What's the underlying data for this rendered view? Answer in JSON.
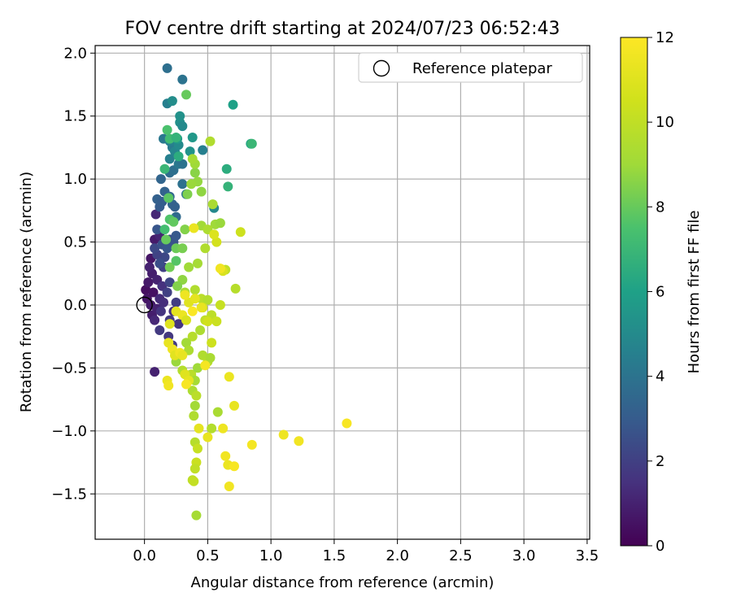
{
  "chart_data": {
    "type": "scatter",
    "title": "FOV centre drift starting at 2024/07/23 06:52:43",
    "xlabel": "Angular distance from reference (arcmin)",
    "ylabel": "Rotation from reference (arcmin)",
    "colorbar_label": "Hours from first FF file",
    "xlim": [
      -0.39,
      3.52
    ],
    "ylim": [
      -1.86,
      2.06
    ],
    "clim": [
      0,
      12
    ],
    "x_ticks": [
      0.0,
      0.5,
      1.0,
      1.5,
      2.0,
      2.5,
      3.0,
      3.5
    ],
    "x_tick_labels": [
      "0.0",
      "0.5",
      "1.0",
      "1.5",
      "2.0",
      "2.5",
      "3.0",
      "3.5"
    ],
    "y_ticks": [
      -1.5,
      -1.0,
      -0.5,
      0.0,
      0.5,
      1.0,
      1.5,
      2.0
    ],
    "y_tick_labels": [
      "−1.5",
      "−1.0",
      "−0.5",
      "0.0",
      "0.5",
      "1.0",
      "1.5",
      "2.0"
    ],
    "colorbar_ticks": [
      0,
      2,
      4,
      6,
      8,
      10,
      12
    ],
    "colorbar_tick_labels": [
      "0",
      "2",
      "4",
      "6",
      "8",
      "10",
      "12"
    ],
    "grid": true,
    "colormap": "viridis",
    "legend": {
      "position": "top-right",
      "entries": [
        "Reference platepar"
      ]
    },
    "reference_point": {
      "name": "Reference platepar",
      "x": 0.0,
      "y": 0.0
    },
    "points": [
      [
        0.01,
        0.12,
        0.4
      ],
      [
        0.02,
        0.05,
        0.6
      ],
      [
        0.05,
        0.0,
        0.8
      ],
      [
        0.03,
        0.18,
        0.7
      ],
      [
        0.06,
        0.25,
        0.9
      ],
      [
        0.05,
        0.37,
        0.6
      ],
      [
        0.08,
        0.52,
        0.8
      ],
      [
        0.09,
        0.72,
        1.2
      ],
      [
        0.12,
        0.55,
        1.1
      ],
      [
        0.04,
        0.3,
        1.0
      ],
      [
        0.07,
        0.1,
        0.5
      ],
      [
        0.1,
        0.2,
        1.0
      ],
      [
        0.06,
        -0.08,
        0.9
      ],
      [
        0.08,
        -0.12,
        1.2
      ],
      [
        0.1,
        -0.03,
        1.0
      ],
      [
        0.12,
        0.05,
        1.3
      ],
      [
        0.14,
        0.15,
        1.5
      ],
      [
        0.15,
        0.02,
        1.4
      ],
      [
        0.13,
        -0.05,
        1.6
      ],
      [
        0.2,
        -0.12,
        1.8
      ],
      [
        0.23,
        -0.05,
        1.5
      ],
      [
        0.19,
        -0.25,
        1.7
      ],
      [
        0.12,
        -0.2,
        1.8
      ],
      [
        0.08,
        -0.53,
        1.0
      ],
      [
        0.25,
        0.02,
        1.9
      ],
      [
        0.27,
        -0.15,
        1.6
      ],
      [
        0.22,
        -0.32,
        1.8
      ],
      [
        0.18,
        0.1,
        2.0
      ],
      [
        0.2,
        0.18,
        2.2
      ],
      [
        0.15,
        0.3,
        2.0
      ],
      [
        0.16,
        0.38,
        2.3
      ],
      [
        0.1,
        0.4,
        2.1
      ],
      [
        0.12,
        0.33,
        2.5
      ],
      [
        0.08,
        0.45,
        2.3
      ],
      [
        0.14,
        0.48,
        2.6
      ],
      [
        0.18,
        0.45,
        2.8
      ],
      [
        0.2,
        0.52,
        2.4
      ],
      [
        0.23,
        0.5,
        2.7
      ],
      [
        0.25,
        0.55,
        2.9
      ],
      [
        0.1,
        0.6,
        2.8
      ],
      [
        0.12,
        0.78,
        3.0
      ],
      [
        0.1,
        0.84,
        3.2
      ],
      [
        0.14,
        0.82,
        3.1
      ],
      [
        0.16,
        0.9,
        3.3
      ],
      [
        0.2,
        0.86,
        3.5
      ],
      [
        0.22,
        0.8,
        3.4
      ],
      [
        0.24,
        0.78,
        3.2
      ],
      [
        0.25,
        0.7,
        3.6
      ],
      [
        0.13,
        1.0,
        3.4
      ],
      [
        0.2,
        1.05,
        3.7
      ],
      [
        0.23,
        1.07,
        3.8
      ],
      [
        0.27,
        1.12,
        4.2
      ],
      [
        0.3,
        1.12,
        4.0
      ],
      [
        0.33,
        0.88,
        4.1
      ],
      [
        0.3,
        0.96,
        3.9
      ],
      [
        0.2,
        1.16,
        4.5
      ],
      [
        0.22,
        1.25,
        4.3
      ],
      [
        0.15,
        1.32,
        4.2
      ],
      [
        0.2,
        1.3,
        4.6
      ],
      [
        0.24,
        1.22,
        4.8
      ],
      [
        0.27,
        1.27,
        5.0
      ],
      [
        0.18,
        1.6,
        4.5
      ],
      [
        0.22,
        1.62,
        5.1
      ],
      [
        0.28,
        1.45,
        5.2
      ],
      [
        0.28,
        1.5,
        5.3
      ],
      [
        0.3,
        1.42,
        5.0
      ],
      [
        0.36,
        1.22,
        5.4
      ],
      [
        0.38,
        1.33,
        5.6
      ],
      [
        0.18,
        1.88,
        3.8
      ],
      [
        0.3,
        1.79,
        4.0
      ],
      [
        0.26,
        1.32,
        5.8
      ],
      [
        0.46,
        1.23,
        4.5
      ],
      [
        0.55,
        0.77,
        4.9
      ],
      [
        0.65,
        1.08,
        6.5
      ],
      [
        0.66,
        0.94,
        6.8
      ],
      [
        0.7,
        1.59,
        6.0
      ],
      [
        0.84,
        1.28,
        6.2
      ],
      [
        0.85,
        1.28,
        7.0
      ],
      [
        0.33,
        1.67,
        8.0
      ],
      [
        0.18,
        1.39,
        7.5
      ],
      [
        0.2,
        1.32,
        7.2
      ],
      [
        0.25,
        1.33,
        6.8
      ],
      [
        0.27,
        1.18,
        6.5
      ],
      [
        0.16,
        1.08,
        7.0
      ],
      [
        0.19,
        0.85,
        7.8
      ],
      [
        0.2,
        0.68,
        7.6
      ],
      [
        0.16,
        0.6,
        7.3
      ],
      [
        0.17,
        0.52,
        8.0
      ],
      [
        0.23,
        0.66,
        7.9
      ],
      [
        0.25,
        0.45,
        8.1
      ],
      [
        0.2,
        0.3,
        8.2
      ],
      [
        0.25,
        0.35,
        7.7
      ],
      [
        0.3,
        0.45,
        8.3
      ],
      [
        0.32,
        0.6,
        8.5
      ],
      [
        0.34,
        0.88,
        8.4
      ],
      [
        0.4,
        1.05,
        8.6
      ],
      [
        0.42,
        0.98,
        8.8
      ],
      [
        0.45,
        0.9,
        8.7
      ],
      [
        0.37,
        0.96,
        8.9
      ],
      [
        0.4,
        1.12,
        9.0
      ],
      [
        0.38,
        1.16,
        9.2
      ],
      [
        0.52,
        1.3,
        9.5
      ],
      [
        0.54,
        0.8,
        9.3
      ],
      [
        0.56,
        0.64,
        9.0
      ],
      [
        0.6,
        0.65,
        8.9
      ],
      [
        0.45,
        0.63,
        9.1
      ],
      [
        0.5,
        0.6,
        9.4
      ],
      [
        0.48,
        0.45,
        9.5
      ],
      [
        0.42,
        0.33,
        9.2
      ],
      [
        0.35,
        0.3,
        9.0
      ],
      [
        0.3,
        0.2,
        8.7
      ],
      [
        0.26,
        0.15,
        8.5
      ],
      [
        0.32,
        0.1,
        9.3
      ],
      [
        0.4,
        0.12,
        9.5
      ],
      [
        0.45,
        0.05,
        9.8
      ],
      [
        0.5,
        0.04,
        9.6
      ],
      [
        0.53,
        -0.08,
        9.9
      ],
      [
        0.48,
        -0.12,
        10.0
      ],
      [
        0.44,
        -0.2,
        9.4
      ],
      [
        0.38,
        -0.25,
        9.7
      ],
      [
        0.33,
        -0.3,
        9.1
      ],
      [
        0.35,
        -0.36,
        9.4
      ],
      [
        0.28,
        -0.4,
        9.0
      ],
      [
        0.25,
        -0.45,
        8.9
      ],
      [
        0.3,
        -0.52,
        9.6
      ],
      [
        0.37,
        -0.55,
        9.8
      ],
      [
        0.4,
        -0.6,
        9.2
      ],
      [
        0.42,
        -0.5,
        9.0
      ],
      [
        0.46,
        -0.4,
        9.5
      ],
      [
        0.5,
        -0.45,
        9.7
      ],
      [
        0.52,
        -0.42,
        9.3
      ],
      [
        0.38,
        -0.68,
        9.4
      ],
      [
        0.41,
        -0.72,
        9.8
      ],
      [
        0.4,
        -0.8,
        9.1
      ],
      [
        0.39,
        -0.88,
        9.5
      ],
      [
        0.58,
        -0.85,
        9.3
      ],
      [
        0.53,
        -0.98,
        9.6
      ],
      [
        0.4,
        -1.09,
        9.7
      ],
      [
        0.42,
        -1.14,
        10.2
      ],
      [
        0.41,
        -1.25,
        10.3
      ],
      [
        0.4,
        -1.3,
        10.0
      ],
      [
        0.38,
        -1.39,
        9.9
      ],
      [
        0.39,
        -1.4,
        10.1
      ],
      [
        0.41,
        -1.67,
        9.2
      ],
      [
        0.64,
        0.28,
        10.0
      ],
      [
        0.72,
        0.13,
        9.7
      ],
      [
        0.76,
        0.58,
        10.4
      ],
      [
        0.62,
        0.27,
        10.8
      ],
      [
        0.6,
        0.0,
        10.2
      ],
      [
        0.57,
        -0.13,
        10.3
      ],
      [
        0.5,
        -0.13,
        10.5
      ],
      [
        0.46,
        -0.02,
        10.6
      ],
      [
        0.53,
        -0.3,
        10.4
      ],
      [
        0.57,
        0.5,
        10.6
      ],
      [
        0.55,
        0.56,
        10.9
      ],
      [
        0.35,
        0.02,
        11.0
      ],
      [
        0.4,
        0.05,
        11.2
      ],
      [
        0.32,
        0.08,
        11.5
      ],
      [
        0.25,
        -0.05,
        11.2
      ],
      [
        0.3,
        -0.08,
        11.4
      ],
      [
        0.33,
        -0.12,
        10.8
      ],
      [
        0.2,
        -0.15,
        11.0
      ],
      [
        0.19,
        -0.3,
        11.3
      ],
      [
        0.22,
        -0.35,
        11.5
      ],
      [
        0.24,
        -0.4,
        11.1
      ],
      [
        0.28,
        -0.38,
        11.6
      ],
      [
        0.3,
        -0.4,
        11.3
      ],
      [
        0.32,
        -0.55,
        11.0
      ],
      [
        0.35,
        -0.6,
        11.2
      ],
      [
        0.33,
        -0.63,
        11.8
      ],
      [
        0.18,
        -0.6,
        11.4
      ],
      [
        0.19,
        -0.64,
        11.6
      ],
      [
        0.48,
        -0.48,
        11.7
      ],
      [
        0.5,
        -1.05,
        11.3
      ],
      [
        0.43,
        -0.98,
        11.2
      ],
      [
        0.62,
        -0.98,
        11.5
      ],
      [
        0.64,
        -1.2,
        11.6
      ],
      [
        0.66,
        -1.27,
        11.4
      ],
      [
        0.71,
        -1.28,
        11.8
      ],
      [
        0.67,
        -1.44,
        11.6
      ],
      [
        0.67,
        -0.57,
        11.4
      ],
      [
        0.71,
        -0.8,
        11.3
      ],
      [
        0.85,
        -1.11,
        11.7
      ],
      [
        1.1,
        -1.03,
        11.5
      ],
      [
        1.22,
        -1.08,
        11.6
      ],
      [
        1.6,
        -0.94,
        11.8
      ],
      [
        0.39,
        0.61,
        11.4
      ],
      [
        0.6,
        0.29,
        11.6
      ],
      [
        0.45,
        -0.02,
        11.3
      ],
      [
        0.38,
        -0.05,
        11.9
      ]
    ]
  }
}
